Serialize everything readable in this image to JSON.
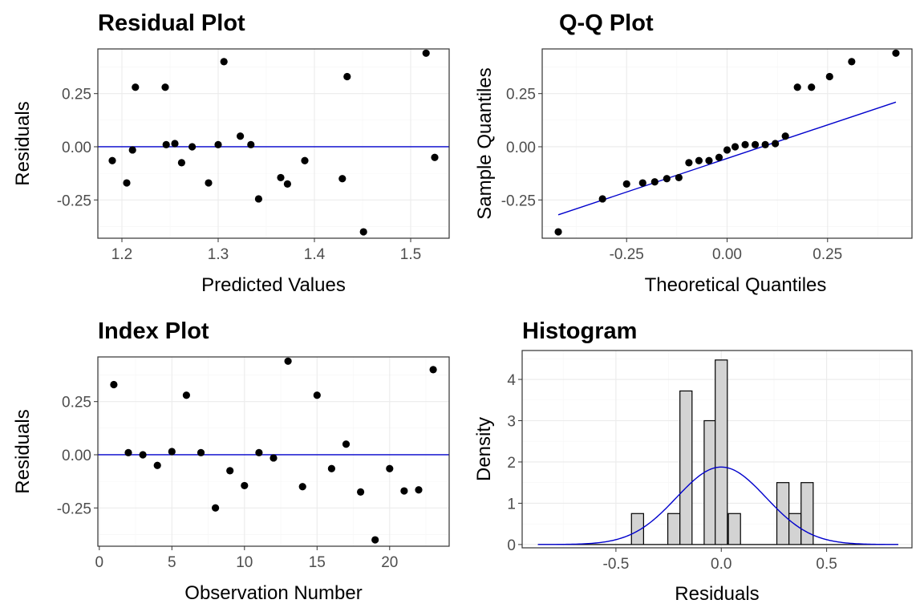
{
  "colors": {
    "point": "#000000",
    "reference_line": "#0000cc",
    "bar_fill": "#d3d3d3",
    "bar_stroke": "#000000"
  },
  "chart_data": [
    {
      "id": "residual",
      "type": "scatter",
      "title": "Residual Plot",
      "xlabel": "Predicted Values",
      "ylabel": "Residuals",
      "xlim": [
        1.175,
        1.54
      ],
      "ylim": [
        -0.43,
        0.46
      ],
      "xticks": [
        1.2,
        1.3,
        1.4,
        1.5
      ],
      "xtick_labels": [
        "1.2",
        "1.3",
        "1.4",
        "1.5"
      ],
      "yticks": [
        -0.25,
        0,
        0.25
      ],
      "ytick_labels": [
        "-0.25",
        "0.00",
        "0.25"
      ],
      "hline": 0,
      "points": [
        [
          1.19,
          -0.065
        ],
        [
          1.205,
          -0.17
        ],
        [
          1.211,
          -0.015
        ],
        [
          1.214,
          0.28
        ],
        [
          1.245,
          0.28
        ],
        [
          1.246,
          0.01
        ],
        [
          1.255,
          0.015
        ],
        [
          1.262,
          -0.075
        ],
        [
          1.273,
          0.0
        ],
        [
          1.29,
          -0.17
        ],
        [
          1.3,
          0.01
        ],
        [
          1.306,
          0.4
        ],
        [
          1.323,
          0.05
        ],
        [
          1.334,
          0.01
        ],
        [
          1.342,
          -0.245
        ],
        [
          1.365,
          -0.145
        ],
        [
          1.372,
          -0.175
        ],
        [
          1.39,
          -0.065
        ],
        [
          1.429,
          -0.15
        ],
        [
          1.434,
          0.33
        ],
        [
          1.451,
          -0.4
        ],
        [
          1.516,
          0.44
        ],
        [
          1.525,
          -0.05
        ]
      ]
    },
    {
      "id": "qq",
      "type": "scatter",
      "title": "Q-Q Plot",
      "xlabel": "Theoretical Quantiles",
      "ylabel": "Sample Quantiles",
      "xlim": [
        -0.46,
        0.46
      ],
      "ylim": [
        -0.43,
        0.46
      ],
      "xticks": [
        -0.25,
        0,
        0.25
      ],
      "xtick_labels": [
        "-0.25",
        "0.00",
        "0.25"
      ],
      "yticks": [
        -0.25,
        0,
        0.25
      ],
      "ytick_labels": [
        "-0.25",
        "0.00",
        "0.25"
      ],
      "line": [
        [
          -0.42,
          -0.32
        ],
        [
          0.42,
          0.21
        ]
      ],
      "points": [
        [
          -0.42,
          -0.4
        ],
        [
          -0.31,
          -0.245
        ],
        [
          -0.25,
          -0.175
        ],
        [
          -0.21,
          -0.17
        ],
        [
          -0.18,
          -0.165
        ],
        [
          -0.15,
          -0.15
        ],
        [
          -0.12,
          -0.145
        ],
        [
          -0.095,
          -0.075
        ],
        [
          -0.07,
          -0.065
        ],
        [
          -0.045,
          -0.065
        ],
        [
          -0.02,
          -0.05
        ],
        [
          0.0,
          -0.015
        ],
        [
          0.02,
          0.0
        ],
        [
          0.045,
          0.01
        ],
        [
          0.07,
          0.01
        ],
        [
          0.095,
          0.01
        ],
        [
          0.12,
          0.015
        ],
        [
          0.145,
          0.05
        ],
        [
          0.175,
          0.28
        ],
        [
          0.21,
          0.28
        ],
        [
          0.255,
          0.33
        ],
        [
          0.31,
          0.4
        ],
        [
          0.42,
          0.44
        ]
      ]
    },
    {
      "id": "index",
      "type": "scatter",
      "title": "Index Plot",
      "xlabel": "Observation Number",
      "ylabel": "Residuals",
      "xlim": [
        -0.1,
        24.1
      ],
      "ylim": [
        -0.43,
        0.46
      ],
      "xticks": [
        0,
        5,
        10,
        15,
        20
      ],
      "xtick_labels": [
        "0",
        "5",
        "10",
        "15",
        "20"
      ],
      "yticks": [
        -0.25,
        0,
        0.25
      ],
      "ytick_labels": [
        "-0.25",
        "0.00",
        "0.25"
      ],
      "hline": 0,
      "points": [
        [
          1,
          0.33
        ],
        [
          2,
          0.01
        ],
        [
          3,
          0.0
        ],
        [
          4,
          -0.05
        ],
        [
          5,
          0.015
        ],
        [
          6,
          0.28
        ],
        [
          7,
          0.01
        ],
        [
          8,
          -0.25
        ],
        [
          9,
          -0.075
        ],
        [
          10,
          -0.145
        ],
        [
          11,
          0.01
        ],
        [
          12,
          -0.015
        ],
        [
          13,
          0.44
        ],
        [
          14,
          -0.15
        ],
        [
          15,
          0.28
        ],
        [
          16,
          -0.065
        ],
        [
          17,
          0.05
        ],
        [
          18,
          -0.175
        ],
        [
          19,
          -0.4
        ],
        [
          20,
          -0.065
        ],
        [
          21,
          -0.17
        ],
        [
          22,
          -0.165
        ],
        [
          23,
          0.4
        ]
      ]
    },
    {
      "id": "histogram",
      "type": "bar",
      "title": "Histogram",
      "xlabel": "Residuals",
      "ylabel": "Density",
      "xlim": [
        -0.945,
        0.905
      ],
      "ylim": [
        -0.08,
        4.7
      ],
      "xticks": [
        -0.5,
        0,
        0.5
      ],
      "xtick_labels": [
        "-0.5",
        "0.0",
        "0.5"
      ],
      "yticks": [
        0,
        1,
        2,
        3,
        4
      ],
      "ytick_labels": [
        "0",
        "1",
        "2",
        "3",
        "4"
      ],
      "bin_width": 0.0575,
      "bars": [
        [
          -0.3975,
          0.75
        ],
        [
          -0.225,
          0.75
        ],
        [
          -0.1675,
          3.72
        ],
        [
          -0.0525,
          3.0
        ],
        [
          0.0,
          4.47
        ],
        [
          0.0625,
          0.75
        ],
        [
          0.2925,
          1.5
        ],
        [
          0.35,
          0.75
        ],
        [
          0.4075,
          1.5
        ]
      ],
      "baseline": [
        -0.87,
        0.84
      ],
      "density_curve": {
        "mean": 0.0,
        "sd": 0.2125
      }
    }
  ]
}
